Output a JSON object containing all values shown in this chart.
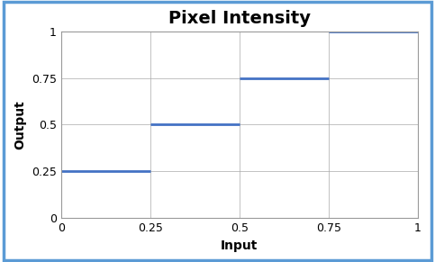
{
  "title": "Pixel Intensity",
  "xlabel": "Input",
  "ylabel": "Output",
  "xlim": [
    0,
    1
  ],
  "ylim": [
    0,
    1
  ],
  "xticks": [
    0,
    0.25,
    0.5,
    0.75,
    1
  ],
  "yticks": [
    0,
    0.25,
    0.5,
    0.75,
    1
  ],
  "line_color": "#4472C4",
  "line_width": 2.0,
  "segments": [
    {
      "x": [
        0,
        0.25
      ],
      "y": [
        0.25,
        0.25
      ]
    },
    {
      "x": [
        0.25,
        0.5
      ],
      "y": [
        0.5,
        0.5
      ]
    },
    {
      "x": [
        0.5,
        0.75
      ],
      "y": [
        0.75,
        0.75
      ]
    },
    {
      "x": [
        0.75,
        1.0
      ],
      "y": [
        1.0,
        1.0
      ]
    }
  ],
  "background_color": "#ffffff",
  "border_color": "#5B9BD5",
  "title_fontsize": 14,
  "label_fontsize": 10,
  "tick_fontsize": 9,
  "grid_color": "#aaaaaa",
  "grid_linewidth": 0.5,
  "fig_width": 4.83,
  "fig_height": 2.91,
  "dpi": 100
}
